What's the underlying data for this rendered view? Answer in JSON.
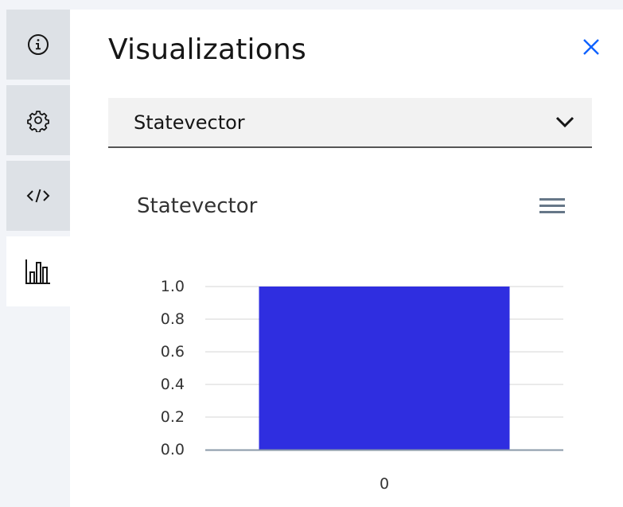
{
  "rail": {
    "items": [
      {
        "name": "info",
        "icon": "info-icon",
        "active": false
      },
      {
        "name": "settings",
        "icon": "gear-icon",
        "active": false
      },
      {
        "name": "code",
        "icon": "code-icon",
        "active": false
      },
      {
        "name": "visualizations",
        "icon": "bar-chart-icon",
        "active": true
      }
    ]
  },
  "panel": {
    "title": "Visualizations",
    "close_icon": "close-icon",
    "dropdown": {
      "selected": "Statevector",
      "icon": "chevron-down-icon"
    },
    "chart_menu_icon": "hamburger-menu-icon"
  },
  "colors": {
    "bar": "#2f2ee0",
    "accent": "#0f62fe",
    "rail_bg": "#dde1e6"
  },
  "chart_data": {
    "type": "bar",
    "title": "Statevector",
    "categories": [
      "0"
    ],
    "values": [
      1.0
    ],
    "ylim": [
      0,
      1
    ],
    "yticks": [
      "0.0",
      "0.2",
      "0.4",
      "0.6",
      "0.8",
      "1.0"
    ],
    "xlabel": "",
    "ylabel": "",
    "grid": true
  }
}
